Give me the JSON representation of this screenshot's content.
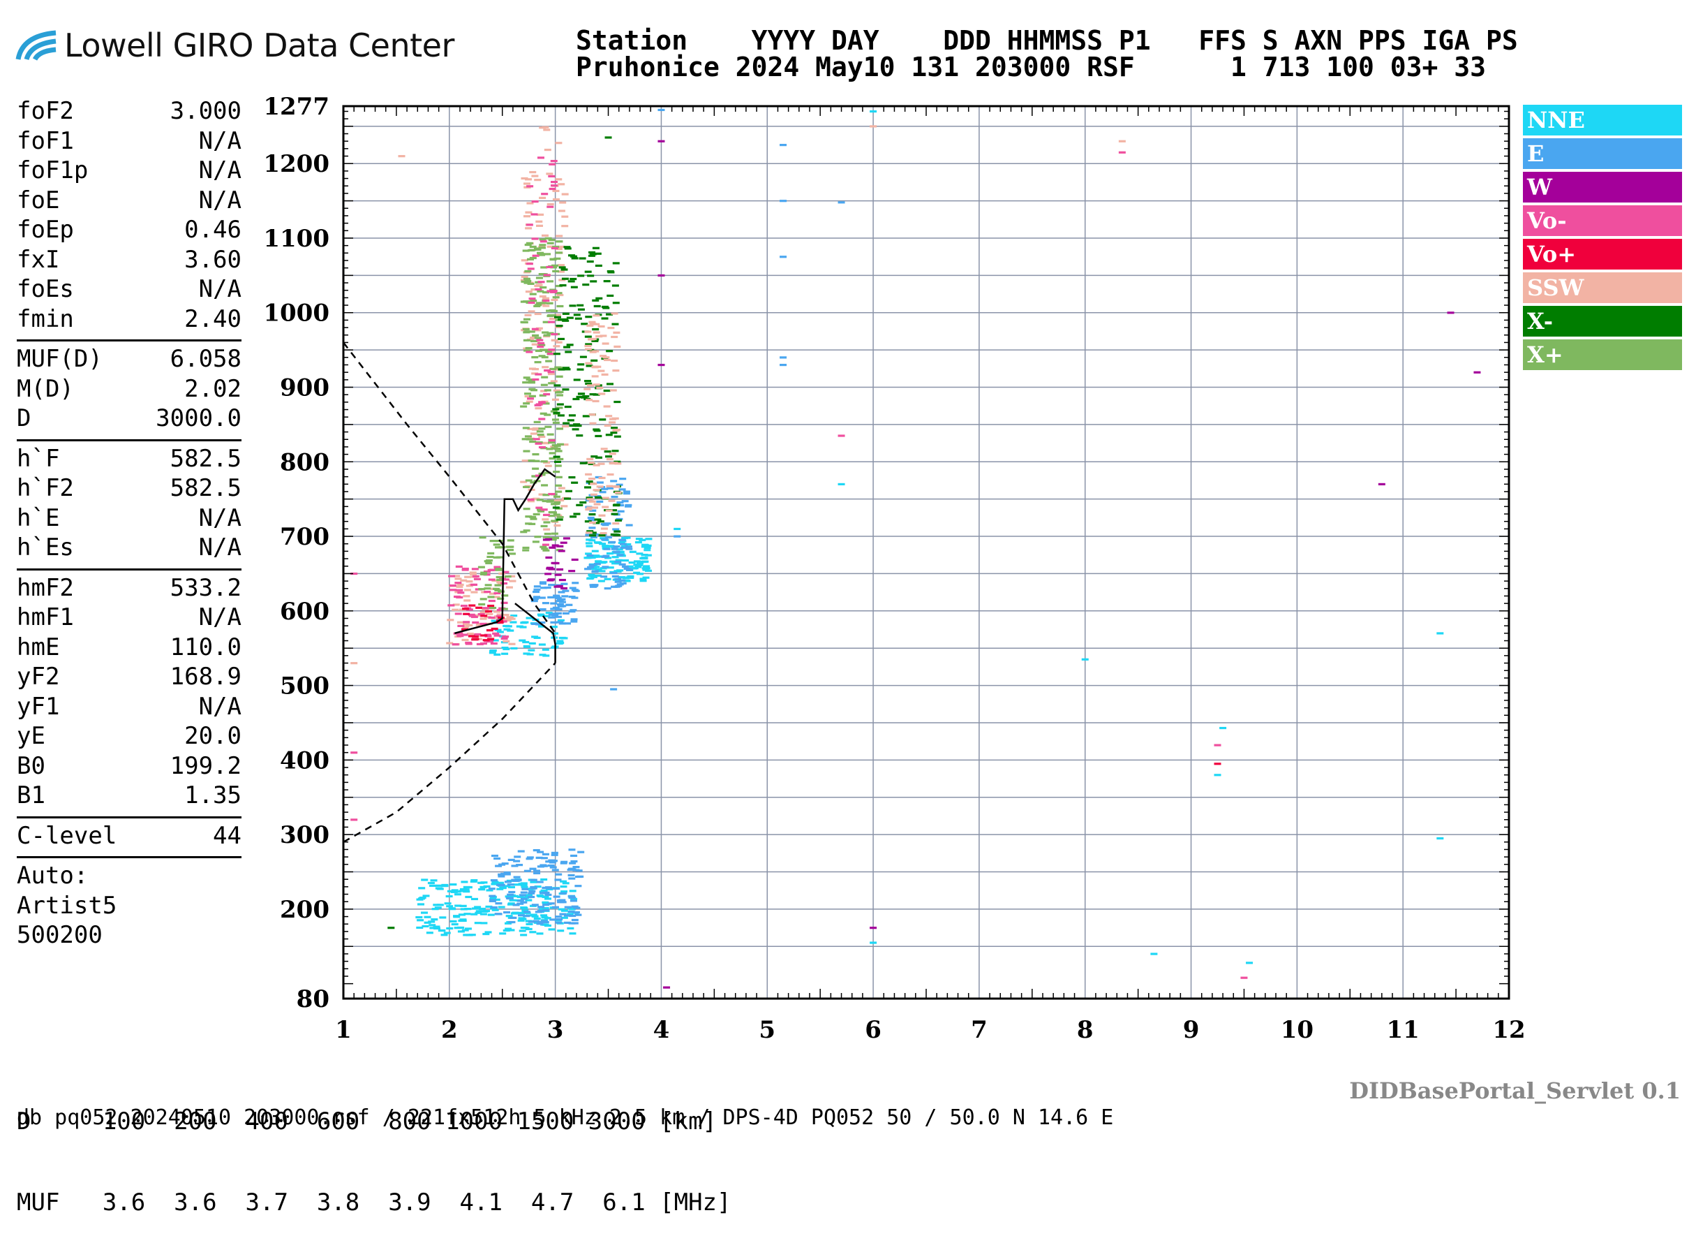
{
  "logo": {
    "text": "Lowell GIRO Data Center"
  },
  "header": {
    "line1": "Station    YYYY DAY    DDD HHMMSS P1   FFS S AXN PPS IGA PS",
    "line2": "Pruhonice 2024 May10 131 203000 RSF      1 713 100 03+ 33"
  },
  "params": {
    "group1": [
      {
        "name": "foF2",
        "value": "3.000"
      },
      {
        "name": "foF1",
        "value": "N/A"
      },
      {
        "name": "foF1p",
        "value": "N/A"
      },
      {
        "name": "foE",
        "value": "N/A"
      },
      {
        "name": "foEp",
        "value": "0.46"
      },
      {
        "name": "fxI",
        "value": "3.60"
      },
      {
        "name": "foEs",
        "value": "N/A"
      },
      {
        "name": "fmin",
        "value": "2.40"
      }
    ],
    "group2": [
      {
        "name": "MUF(D)",
        "value": "6.058"
      },
      {
        "name": "M(D)",
        "value": "2.02"
      },
      {
        "name": "D",
        "value": "3000.0"
      }
    ],
    "group3": [
      {
        "name": "h`F",
        "value": "582.5"
      },
      {
        "name": "h`F2",
        "value": "582.5"
      },
      {
        "name": "h`E",
        "value": "N/A"
      },
      {
        "name": "h`Es",
        "value": "N/A"
      }
    ],
    "group4": [
      {
        "name": "hmF2",
        "value": "533.2"
      },
      {
        "name": "hmF1",
        "value": "N/A"
      },
      {
        "name": "hmE",
        "value": "110.0"
      },
      {
        "name": "yF2",
        "value": "168.9"
      },
      {
        "name": "yF1",
        "value": "N/A"
      },
      {
        "name": "yE",
        "value": "20.0"
      },
      {
        "name": "B0",
        "value": "199.2"
      },
      {
        "name": "B1",
        "value": "1.35"
      }
    ],
    "group5": [
      {
        "name": "C-level",
        "value": "44"
      }
    ],
    "auto": [
      "Auto:",
      "Artist5",
      "500200"
    ]
  },
  "legend": [
    {
      "label": "NNE",
      "color": "#1ed7f5"
    },
    {
      "label": "E",
      "color": "#4aa6f0"
    },
    {
      "label": "W",
      "color": "#a4009a"
    },
    {
      "label": "Vo-",
      "color": "#ef4f9e"
    },
    {
      "label": "Vo+",
      "color": "#f0003c"
    },
    {
      "label": "SSW",
      "color": "#f2b3a4"
    },
    {
      "label": "X-",
      "color": "#007d00"
    },
    {
      "label": "X+",
      "color": "#7fb85f"
    }
  ],
  "distance_table": {
    "row1": "D     100  200  400  600  800 1000 1500 3000 [km]",
    "row2": "MUF   3.6  3.6  3.7  3.8  3.9  4.1  4.7  6.1 [MHz]"
  },
  "footer": "db pq052 20240510 203000.rsf / 221fx512h 5 kHz 2.5 km / DPS-4D PQ052 50 / 50.0 N 14.6 E",
  "servlet": "DIDBasePortal_Servlet 0.1",
  "chart_data": {
    "type": "scatter",
    "x_ticks": [
      1,
      2,
      3,
      4,
      5,
      6,
      7,
      8,
      9,
      10,
      11,
      12
    ],
    "x_tick_labels": [
      "1",
      "2",
      "3",
      "4",
      "5",
      "6",
      "7",
      "8",
      "9",
      "10",
      "11",
      "12"
    ],
    "y_ticks": [
      80,
      200,
      300,
      400,
      500,
      600,
      700,
      800,
      900,
      1000,
      1100,
      1200,
      1277
    ],
    "y_tick_labels": [
      "80",
      "200",
      "300",
      "400",
      "500",
      "600",
      "700",
      "800",
      "900",
      "1000",
      "1100",
      "1200",
      "1277"
    ],
    "xlim": [
      1,
      12
    ],
    "ylim": [
      80,
      1277
    ],
    "grid": true,
    "legend_position": "right",
    "profile_line": [
      [
        3.0,
        530
      ],
      [
        3.0,
        555
      ],
      [
        2.98,
        570
      ],
      [
        2.62,
        610
      ]
    ],
    "profile_dashed_lower": [
      [
        1.0,
        290
      ],
      [
        1.5,
        330
      ],
      [
        2.0,
        390
      ],
      [
        2.5,
        455
      ],
      [
        3.0,
        530
      ]
    ],
    "profile_dashed_upper": [
      [
        1.0,
        960
      ],
      [
        1.6,
        850
      ],
      [
        2.0,
        780
      ],
      [
        2.5,
        690
      ],
      [
        2.8,
        610
      ],
      [
        3.0,
        570
      ]
    ],
    "trace_line": [
      [
        2.05,
        570
      ],
      [
        2.45,
        585
      ],
      [
        2.5,
        590
      ],
      [
        2.52,
        750
      ],
      [
        2.6,
        750
      ],
      [
        2.65,
        735
      ],
      [
        2.72,
        750
      ],
      [
        2.8,
        770
      ],
      [
        2.9,
        790
      ],
      [
        3.0,
        780
      ]
    ],
    "clusters": [
      {
        "series": "NNE",
        "x_range": [
          1.7,
          3.2
        ],
        "y_range": [
          165,
          240
        ],
        "count": 230
      },
      {
        "series": "E",
        "x_range": [
          2.4,
          3.25
        ],
        "y_range": [
          180,
          280
        ],
        "count": 150
      },
      {
        "series": "NNE",
        "x_range": [
          2.4,
          3.1
        ],
        "y_range": [
          540,
          600
        ],
        "count": 60
      },
      {
        "series": "E",
        "x_range": [
          2.8,
          3.2
        ],
        "y_range": [
          580,
          640
        ],
        "count": 60
      },
      {
        "series": "NNE",
        "x_range": [
          3.3,
          3.9
        ],
        "y_range": [
          640,
          700
        ],
        "count": 120
      },
      {
        "series": "E",
        "x_range": [
          3.3,
          3.7
        ],
        "y_range": [
          630,
          780
        ],
        "count": 90
      },
      {
        "series": "SSW",
        "x_range": [
          2.0,
          2.6
        ],
        "y_range": [
          555,
          660
        ],
        "count": 70
      },
      {
        "series": "Vo-",
        "x_range": [
          2.0,
          2.55
        ],
        "y_range": [
          555,
          660
        ],
        "count": 70
      },
      {
        "series": "Vo+",
        "x_range": [
          2.1,
          2.5
        ],
        "y_range": [
          560,
          610
        ],
        "count": 20
      },
      {
        "series": "X+",
        "x_range": [
          2.3,
          2.6
        ],
        "y_range": [
          600,
          700
        ],
        "count": 40
      },
      {
        "series": "SSW",
        "x_range": [
          2.7,
          3.1
        ],
        "y_range": [
          700,
          1250
        ],
        "count": 130
      },
      {
        "series": "X+",
        "x_range": [
          2.7,
          3.05
        ],
        "y_range": [
          680,
          1100
        ],
        "count": 220
      },
      {
        "series": "Vo-",
        "x_range": [
          2.75,
          3.0
        ],
        "y_range": [
          680,
          1220
        ],
        "count": 60
      },
      {
        "series": "X-",
        "x_range": [
          3.0,
          3.6
        ],
        "y_range": [
          700,
          1090
        ],
        "count": 170
      },
      {
        "series": "SSW",
        "x_range": [
          3.3,
          3.6
        ],
        "y_range": [
          700,
          1000
        ],
        "count": 90
      },
      {
        "series": "W",
        "x_range": [
          2.9,
          3.2
        ],
        "y_range": [
          630,
          700
        ],
        "count": 25
      }
    ],
    "isolated_marks": [
      {
        "series": "E",
        "x": 4.0,
        "y": 1272
      },
      {
        "series": "W",
        "x": 4.0,
        "y": 1230
      },
      {
        "series": "W",
        "x": 4.0,
        "y": 1050
      },
      {
        "series": "W",
        "x": 4.0,
        "y": 930
      },
      {
        "series": "E",
        "x": 5.15,
        "y": 1225
      },
      {
        "series": "E",
        "x": 5.15,
        "y": 1150
      },
      {
        "series": "E",
        "x": 5.15,
        "y": 1075
      },
      {
        "series": "E",
        "x": 5.15,
        "y": 940
      },
      {
        "series": "E",
        "x": 5.15,
        "y": 930
      },
      {
        "series": "E",
        "x": 5.7,
        "y": 1148
      },
      {
        "series": "Vo-",
        "x": 5.7,
        "y": 835
      },
      {
        "series": "NNE",
        "x": 5.7,
        "y": 770
      },
      {
        "series": "NNE",
        "x": 6.0,
        "y": 1270
      },
      {
        "series": "SSW",
        "x": 6.0,
        "y": 1250
      },
      {
        "series": "W",
        "x": 6.0,
        "y": 175
      },
      {
        "series": "NNE",
        "x": 6.0,
        "y": 155
      },
      {
        "series": "SSW",
        "x": 8.35,
        "y": 1230
      },
      {
        "series": "Vo-",
        "x": 8.35,
        "y": 1215
      },
      {
        "series": "NNE",
        "x": 8.0,
        "y": 535
      },
      {
        "series": "NNE",
        "x": 8.65,
        "y": 140
      },
      {
        "series": "Vo+",
        "x": 9.25,
        "y": 395
      },
      {
        "series": "Vo-",
        "x": 9.25,
        "y": 420
      },
      {
        "series": "NNE",
        "x": 9.25,
        "y": 380
      },
      {
        "series": "NNE",
        "x": 9.3,
        "y": 443
      },
      {
        "series": "Vo-",
        "x": 9.5,
        "y": 108
      },
      {
        "series": "NNE",
        "x": 9.55,
        "y": 128
      },
      {
        "series": "NNE",
        "x": 11.35,
        "y": 570
      },
      {
        "series": "NNE",
        "x": 11.35,
        "y": 295
      },
      {
        "series": "W",
        "x": 11.45,
        "y": 1000
      },
      {
        "series": "W",
        "x": 11.7,
        "y": 920
      },
      {
        "series": "W",
        "x": 10.8,
        "y": 770
      },
      {
        "series": "SSW",
        "x": 1.55,
        "y": 1210
      },
      {
        "series": "Vo-",
        "x": 1.1,
        "y": 650
      },
      {
        "series": "SSW",
        "x": 1.1,
        "y": 530
      },
      {
        "series": "Vo-",
        "x": 1.1,
        "y": 410
      },
      {
        "series": "Vo-",
        "x": 1.1,
        "y": 320
      },
      {
        "series": "X-",
        "x": 1.45,
        "y": 175
      },
      {
        "series": "E",
        "x": 3.55,
        "y": 495
      },
      {
        "series": "E",
        "x": 4.15,
        "y": 700
      },
      {
        "series": "NNE",
        "x": 4.15,
        "y": 710
      },
      {
        "series": "X-",
        "x": 3.5,
        "y": 1235
      },
      {
        "series": "W",
        "x": 4.05,
        "y": 95
      }
    ]
  }
}
